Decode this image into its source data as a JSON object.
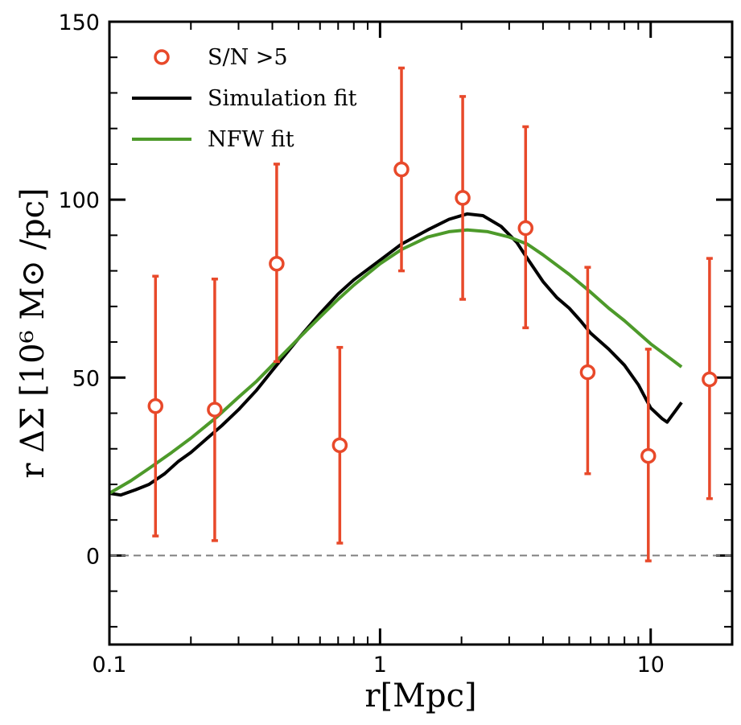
{
  "chart_data": {
    "type": "scatter",
    "title": "",
    "xlabel": "r[Mpc]",
    "ylabel": "r ΔΣ [10⁶ M⊙ /pc]",
    "xscale": "log",
    "xlim": [
      0.1,
      20
    ],
    "ylim": [
      -25,
      150
    ],
    "xticks": [
      {
        "value": 0.1,
        "label": "0.1"
      },
      {
        "value": 1,
        "label": "1"
      },
      {
        "value": 10,
        "label": "10"
      }
    ],
    "yticks": [
      {
        "value": 0,
        "label": "0"
      },
      {
        "value": 50,
        "label": "50"
      },
      {
        "value": 100,
        "label": "100"
      },
      {
        "value": 150,
        "label": "150"
      }
    ],
    "reference_line": {
      "y": 0,
      "style": "dashed",
      "color": "#808080"
    },
    "legend_position": "top-left",
    "series": [
      {
        "name": "S/N >5",
        "kind": "errorbar",
        "color": "#e8492a",
        "x": [
          0.148,
          0.245,
          0.415,
          0.71,
          1.2,
          2.02,
          3.45,
          5.85,
          9.8,
          16.5
        ],
        "y": [
          42,
          41,
          82,
          31,
          108.5,
          100.5,
          92,
          51.5,
          28,
          49.5
        ],
        "yerr_low": [
          36.5,
          36.8,
          27.5,
          27.5,
          28.5,
          28.5,
          28,
          28.5,
          29.5,
          33.5
        ],
        "yerr_high": [
          36.5,
          36.7,
          28,
          27.5,
          28.5,
          28.5,
          28.5,
          29.5,
          30,
          34
        ]
      },
      {
        "name": "Simulation fit",
        "kind": "line",
        "color": "#000000",
        "x": [
          0.1,
          0.11,
          0.125,
          0.14,
          0.16,
          0.18,
          0.2,
          0.23,
          0.26,
          0.3,
          0.35,
          0.4,
          0.5,
          0.6,
          0.7,
          0.8,
          1.0,
          1.2,
          1.5,
          1.8,
          2.1,
          2.4,
          2.8,
          3.2,
          3.5,
          4.0,
          4.5,
          5.0,
          5.5,
          6.0,
          7.0,
          8.0,
          9.0,
          10.0,
          11.0,
          11.5,
          13.0
        ],
        "y": [
          17.5,
          17,
          18.5,
          20,
          23,
          26.5,
          29,
          33,
          36.5,
          41,
          46.5,
          52,
          61,
          68,
          73.5,
          77.5,
          83,
          87.5,
          91.5,
          94.5,
          96,
          95.5,
          92.5,
          88,
          83.5,
          77,
          72.5,
          69.5,
          66,
          62.5,
          58,
          53.5,
          48,
          41.5,
          38.5,
          37.5,
          43
        ]
      },
      {
        "name": "NFW fit",
        "kind": "line",
        "color": "#4d9a2a",
        "x": [
          0.1,
          0.12,
          0.14,
          0.17,
          0.2,
          0.25,
          0.3,
          0.35,
          0.4,
          0.5,
          0.6,
          0.7,
          0.8,
          1.0,
          1.2,
          1.5,
          1.8,
          2.1,
          2.5,
          3.0,
          3.5,
          4.0,
          5.0,
          6.0,
          7.0,
          8.0,
          10.0,
          12.0,
          13.0
        ],
        "y": [
          17.5,
          21,
          24.5,
          29,
          33,
          39,
          44.5,
          49,
          53.5,
          61,
          67,
          72,
          76,
          82,
          86,
          89.5,
          91,
          91.5,
          91,
          89.5,
          87.5,
          84.5,
          79,
          74,
          69.5,
          66,
          59.5,
          55,
          53
        ]
      }
    ]
  }
}
